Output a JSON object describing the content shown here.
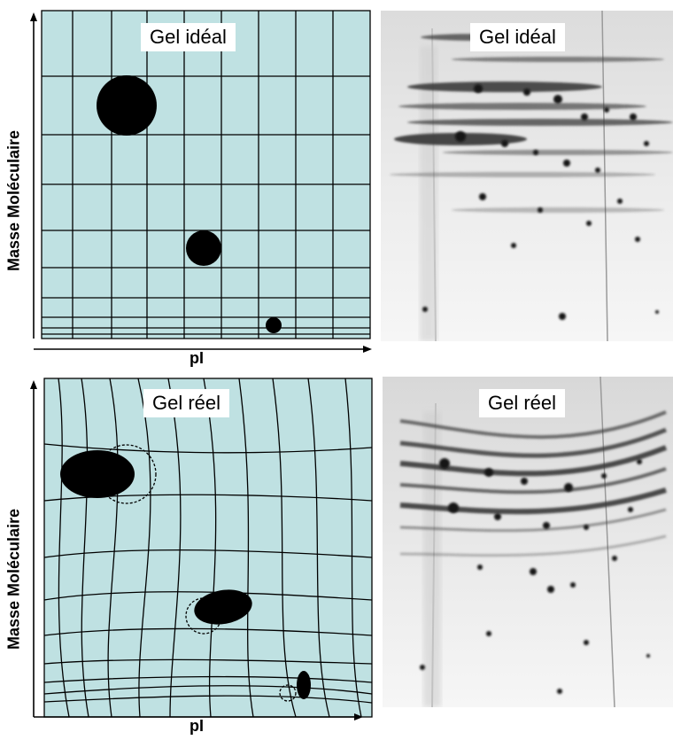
{
  "top": {
    "schema_title": "Gel idéal",
    "photo_title": "Gel idéal",
    "y_axis_label": "Masse Moléculaire",
    "x_axis_label": "pI"
  },
  "bottom": {
    "schema_title": "Gel réel",
    "photo_title": "Gel réel",
    "y_axis_label": "Masse Moléculaire",
    "x_axis_label": "pI"
  },
  "colors": {
    "gel_schema_fill": "#bfe1e2",
    "spot": "#000000",
    "photo_background": "#f4f4f4"
  }
}
